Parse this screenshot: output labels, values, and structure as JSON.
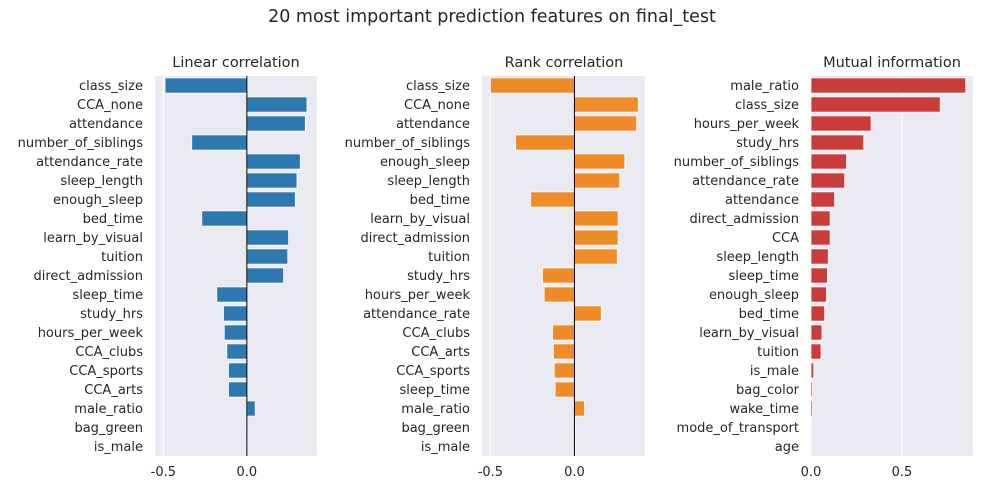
{
  "title": "20 most important prediction features on final_test",
  "chart_data": [
    {
      "type": "bar",
      "orientation": "horizontal",
      "title": "Linear correlation",
      "color": "#2e78b0",
      "xlim": [
        -0.55,
        0.42
      ],
      "xticks": [
        -0.5,
        0.0
      ],
      "xtick_labels": [
        "-0.5",
        "0.0"
      ],
      "grid": true,
      "categories": [
        "class_size",
        "CCA_none",
        "attendance",
        "number_of_siblings",
        "attendance_rate",
        "sleep_length",
        "enough_sleep",
        "bed_time",
        "learn_by_visual",
        "tuition",
        "direct_admission",
        "sleep_time",
        "study_hrs",
        "hours_per_week",
        "CCA_clubs",
        "CCA_sports",
        "CCA_arts",
        "male_ratio",
        "bag_green",
        "is_male"
      ],
      "values": [
        -0.49,
        0.36,
        0.35,
        -0.33,
        0.32,
        0.3,
        0.29,
        -0.27,
        0.25,
        0.245,
        0.22,
        -0.18,
        -0.14,
        -0.135,
        -0.12,
        -0.11,
        -0.11,
        0.05,
        -0.005,
        0.005
      ]
    },
    {
      "type": "bar",
      "orientation": "horizontal",
      "title": "Rank correlation",
      "color": "#f08c28",
      "xlim": [
        -0.55,
        0.42
      ],
      "xticks": [
        -0.5,
        0.0
      ],
      "xtick_labels": [
        "-0.5",
        "0.0"
      ],
      "grid": true,
      "categories": [
        "class_size",
        "CCA_none",
        "attendance",
        "number_of_siblings",
        "enough_sleep",
        "sleep_length",
        "bed_time",
        "learn_by_visual",
        "direct_admission",
        "tuition",
        "study_hrs",
        "hours_per_week",
        "attendance_rate",
        "CCA_clubs",
        "CCA_arts",
        "CCA_sports",
        "sleep_time",
        "male_ratio",
        "bag_green",
        "is_male"
      ],
      "values": [
        -0.5,
        0.38,
        0.37,
        -0.35,
        0.3,
        0.27,
        -0.26,
        0.26,
        0.26,
        0.255,
        -0.19,
        -0.18,
        0.16,
        -0.13,
        -0.125,
        -0.12,
        -0.115,
        0.06,
        0.005,
        0.005
      ]
    },
    {
      "type": "bar",
      "orientation": "horizontal",
      "title": "Mutual information",
      "color": "#c83c3a",
      "xlim": [
        0.0,
        0.89
      ],
      "xticks": [
        0.0,
        0.5
      ],
      "xtick_labels": [
        "0.0",
        "0.5"
      ],
      "grid": true,
      "categories": [
        "male_ratio",
        "class_size",
        "hours_per_week",
        "study_hrs",
        "number_of_siblings",
        "attendance_rate",
        "attendance",
        "direct_admission",
        "CCA",
        "sleep_length",
        "sleep_time",
        "enough_sleep",
        "bed_time",
        "learn_by_visual",
        "tuition",
        "is_male",
        "bag_color",
        "wake_time",
        "mode_of_transport",
        "age"
      ],
      "values": [
        0.85,
        0.71,
        0.33,
        0.29,
        0.195,
        0.185,
        0.13,
        0.105,
        0.105,
        0.095,
        0.09,
        0.085,
        0.075,
        0.06,
        0.055,
        0.015,
        0.008,
        0.008,
        0.0,
        0.0
      ]
    }
  ]
}
